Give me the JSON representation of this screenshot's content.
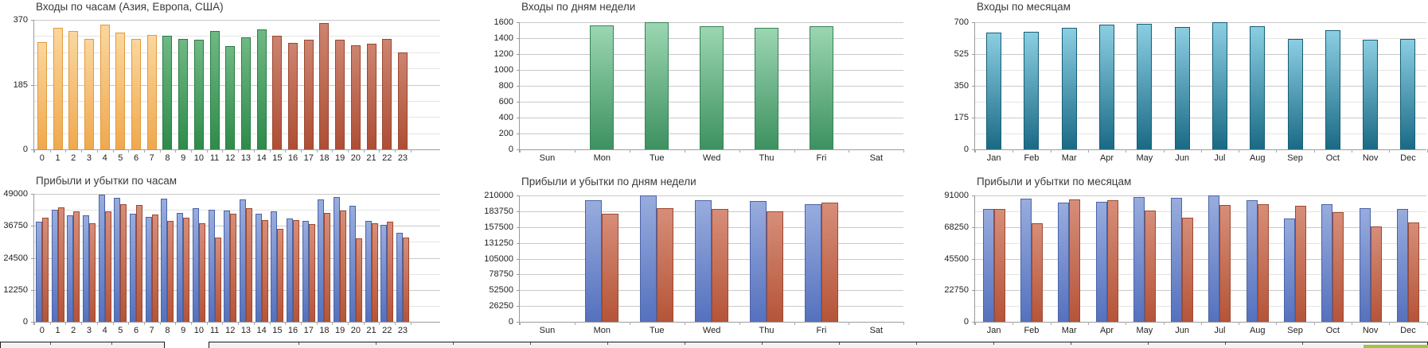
{
  "page": {
    "background": "#FFFFFF"
  },
  "palettes": {
    "asia": {
      "top": "#FAD79E",
      "bottom": "#F0A84E",
      "border": "#E19A3B"
    },
    "europe": {
      "top": "#6FB984",
      "bottom": "#2E8B4A",
      "border": "#2A7C42"
    },
    "usa": {
      "top": "#CC8470",
      "bottom": "#AE4E34",
      "border": "#9C462E"
    },
    "green": {
      "top": "#9BD6B1",
      "bottom": "#3D9160",
      "border": "#368356"
    },
    "teal": {
      "top": "#8BCEE2",
      "bottom": "#1A6A85",
      "border": "#155E78"
    },
    "profit": {
      "top": "#98ACDD",
      "bottom": "#5571BE",
      "border": "#4A64A9"
    },
    "loss": {
      "top": "#D68E79",
      "bottom": "#B55438",
      "border": "#9F4930"
    }
  },
  "chart_data": [
    {
      "type": "bar",
      "title": "Входы по часам (Азия, Европа, США)",
      "categories": [
        "0",
        "1",
        "2",
        "3",
        "4",
        "5",
        "6",
        "7",
        "8",
        "9",
        "10",
        "11",
        "12",
        "13",
        "14",
        "15",
        "16",
        "17",
        "18",
        "19",
        "20",
        "21",
        "22",
        "23"
      ],
      "series": [
        {
          "name": "entries",
          "values": [
            306,
            347,
            338,
            315,
            356,
            334,
            315,
            327,
            325,
            315,
            313,
            338,
            295,
            320,
            343,
            325,
            304,
            313,
            362,
            313,
            297,
            302,
            315,
            277
          ]
        }
      ],
      "bar_groups": [
        {
          "palette": "asia",
          "count": 8
        },
        {
          "palette": "europe",
          "count": 7
        },
        {
          "palette": "usa",
          "count": 9
        }
      ],
      "ylim": [
        0,
        370
      ],
      "yticks": [
        0,
        185,
        370
      ],
      "grid": true,
      "legend": "none"
    },
    {
      "type": "bar",
      "title": "Входы по дням недели",
      "categories": [
        "Sun",
        "Mon",
        "Tue",
        "Wed",
        "Thu",
        "Fri",
        "Sat"
      ],
      "series": [
        {
          "name": "entries",
          "palette": "green",
          "values": [
            0,
            1560,
            1597,
            1548,
            1532,
            1550,
            0
          ]
        }
      ],
      "ylim": [
        0,
        1600
      ],
      "yticks": [
        0,
        200,
        400,
        600,
        800,
        1000,
        1200,
        1400,
        1600
      ],
      "grid": true,
      "legend": "none"
    },
    {
      "type": "bar",
      "title": "Входы по месяцам",
      "categories": [
        "Jan",
        "Feb",
        "Mar",
        "Apr",
        "May",
        "Jun",
        "Jul",
        "Aug",
        "Sep",
        "Oct",
        "Nov",
        "Dec"
      ],
      "series": [
        {
          "name": "entries",
          "palette": "teal",
          "values": [
            643,
            648,
            669,
            687,
            691,
            674,
            698,
            678,
            608,
            656,
            604,
            608
          ]
        }
      ],
      "ylim": [
        0,
        700
      ],
      "yticks": [
        0,
        175,
        350,
        525,
        700
      ],
      "grid": true,
      "legend": "none"
    },
    {
      "type": "bar",
      "title": "Прибыли и убытки по часам",
      "categories": [
        "0",
        "1",
        "2",
        "3",
        "4",
        "5",
        "6",
        "7",
        "8",
        "9",
        "10",
        "11",
        "12",
        "13",
        "14",
        "15",
        "16",
        "17",
        "18",
        "19",
        "20",
        "21",
        "22",
        "23"
      ],
      "series": [
        {
          "name": "profit",
          "palette": "profit",
          "values": [
            38300,
            42900,
            40700,
            40700,
            48600,
            47400,
            41300,
            40100,
            47100,
            41600,
            43500,
            42900,
            42600,
            46800,
            41300,
            42300,
            39500,
            38600,
            47000,
            47700,
            44400,
            38600,
            37100,
            34000
          ]
        },
        {
          "name": "loss",
          "palette": "loss",
          "values": [
            39800,
            43800,
            42300,
            37700,
            42300,
            45000,
            44700,
            41000,
            38600,
            39800,
            37700,
            32200,
            41300,
            43500,
            38900,
            35600,
            38900,
            37400,
            41600,
            42600,
            31900,
            37700,
            38300,
            32200
          ]
        }
      ],
      "ylim": [
        0,
        49000
      ],
      "yticks": [
        0,
        12250,
        24500,
        36750,
        49000
      ],
      "grid": true,
      "legend": "none"
    },
    {
      "type": "bar",
      "title": "Прибыли и убытки по дням недели",
      "categories": [
        "Sun",
        "Mon",
        "Tue",
        "Wed",
        "Thu",
        "Fri",
        "Sat"
      ],
      "series": [
        {
          "name": "profit",
          "palette": "profit",
          "values": [
            0,
            202000,
            209500,
            201500,
            200500,
            195500,
            0
          ]
        },
        {
          "name": "loss",
          "palette": "loss",
          "values": [
            0,
            180000,
            188500,
            187500,
            184000,
            197500,
            0
          ]
        }
      ],
      "ylim": [
        0,
        210000
      ],
      "yticks": [
        0,
        26250,
        52500,
        78750,
        105000,
        131250,
        157500,
        183750,
        210000
      ],
      "grid": true,
      "legend": "none"
    },
    {
      "type": "bar",
      "title": "Прибыли и убытки по месяцам",
      "categories": [
        "Jan",
        "Feb",
        "Mar",
        "Apr",
        "May",
        "Jun",
        "Jul",
        "Aug",
        "Sep",
        "Oct",
        "Nov",
        "Dec"
      ],
      "series": [
        {
          "name": "profit",
          "palette": "profit",
          "values": [
            81200,
            88700,
            85800,
            86500,
            90000,
            89500,
            91000,
            87500,
            74400,
            84600,
            81800,
            81200
          ]
        },
        {
          "name": "loss",
          "palette": "loss",
          "values": [
            81000,
            71000,
            88100,
            87500,
            80100,
            74900,
            84100,
            84600,
            83500,
            78900,
            68600,
            71500
          ]
        }
      ],
      "ylim": [
        0,
        91000
      ],
      "yticks": [
        0,
        22750,
        45500,
        68250,
        91000
      ],
      "grid": true,
      "legend": "none"
    }
  ],
  "bottom_strip": {
    "fill": "#F1F1F1",
    "border": "#1A1A1A",
    "green_indicator_color": "#9FC63C"
  }
}
